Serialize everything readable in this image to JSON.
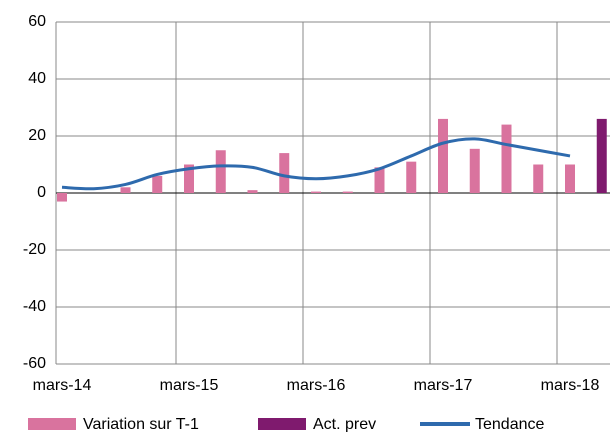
{
  "chart_data": {
    "type": "bar-line",
    "categories": [
      "mars-14",
      null,
      null,
      null,
      "mars-15",
      null,
      null,
      null,
      "mars-16",
      null,
      null,
      null,
      "mars-17",
      null,
      null,
      null,
      "mars-18",
      null
    ],
    "series": [
      {
        "name": "Variation sur T-1",
        "type": "bar",
        "color": "#d9739e",
        "values": [
          -3,
          0,
          2,
          6,
          10,
          15,
          1,
          14,
          0.5,
          0.5,
          9,
          11,
          26,
          15.5,
          24,
          10,
          10,
          null
        ]
      },
      {
        "name": "Act. prev",
        "type": "bar",
        "color": "#7f1a6e",
        "values": [
          null,
          null,
          null,
          null,
          null,
          null,
          null,
          null,
          null,
          null,
          null,
          null,
          null,
          null,
          null,
          null,
          null,
          26
        ]
      },
      {
        "name": "Tendance",
        "type": "line",
        "color": "#2e6aad",
        "values": [
          2,
          1.5,
          3,
          6.5,
          8.5,
          9.5,
          9,
          6,
          5,
          6,
          8.5,
          13,
          17.5,
          19,
          17,
          15,
          13,
          null
        ]
      }
    ],
    "ylim": [
      -60,
      60
    ],
    "yticks": [
      -60,
      -40,
      -20,
      0,
      20,
      40,
      60
    ],
    "grid": true
  }
}
